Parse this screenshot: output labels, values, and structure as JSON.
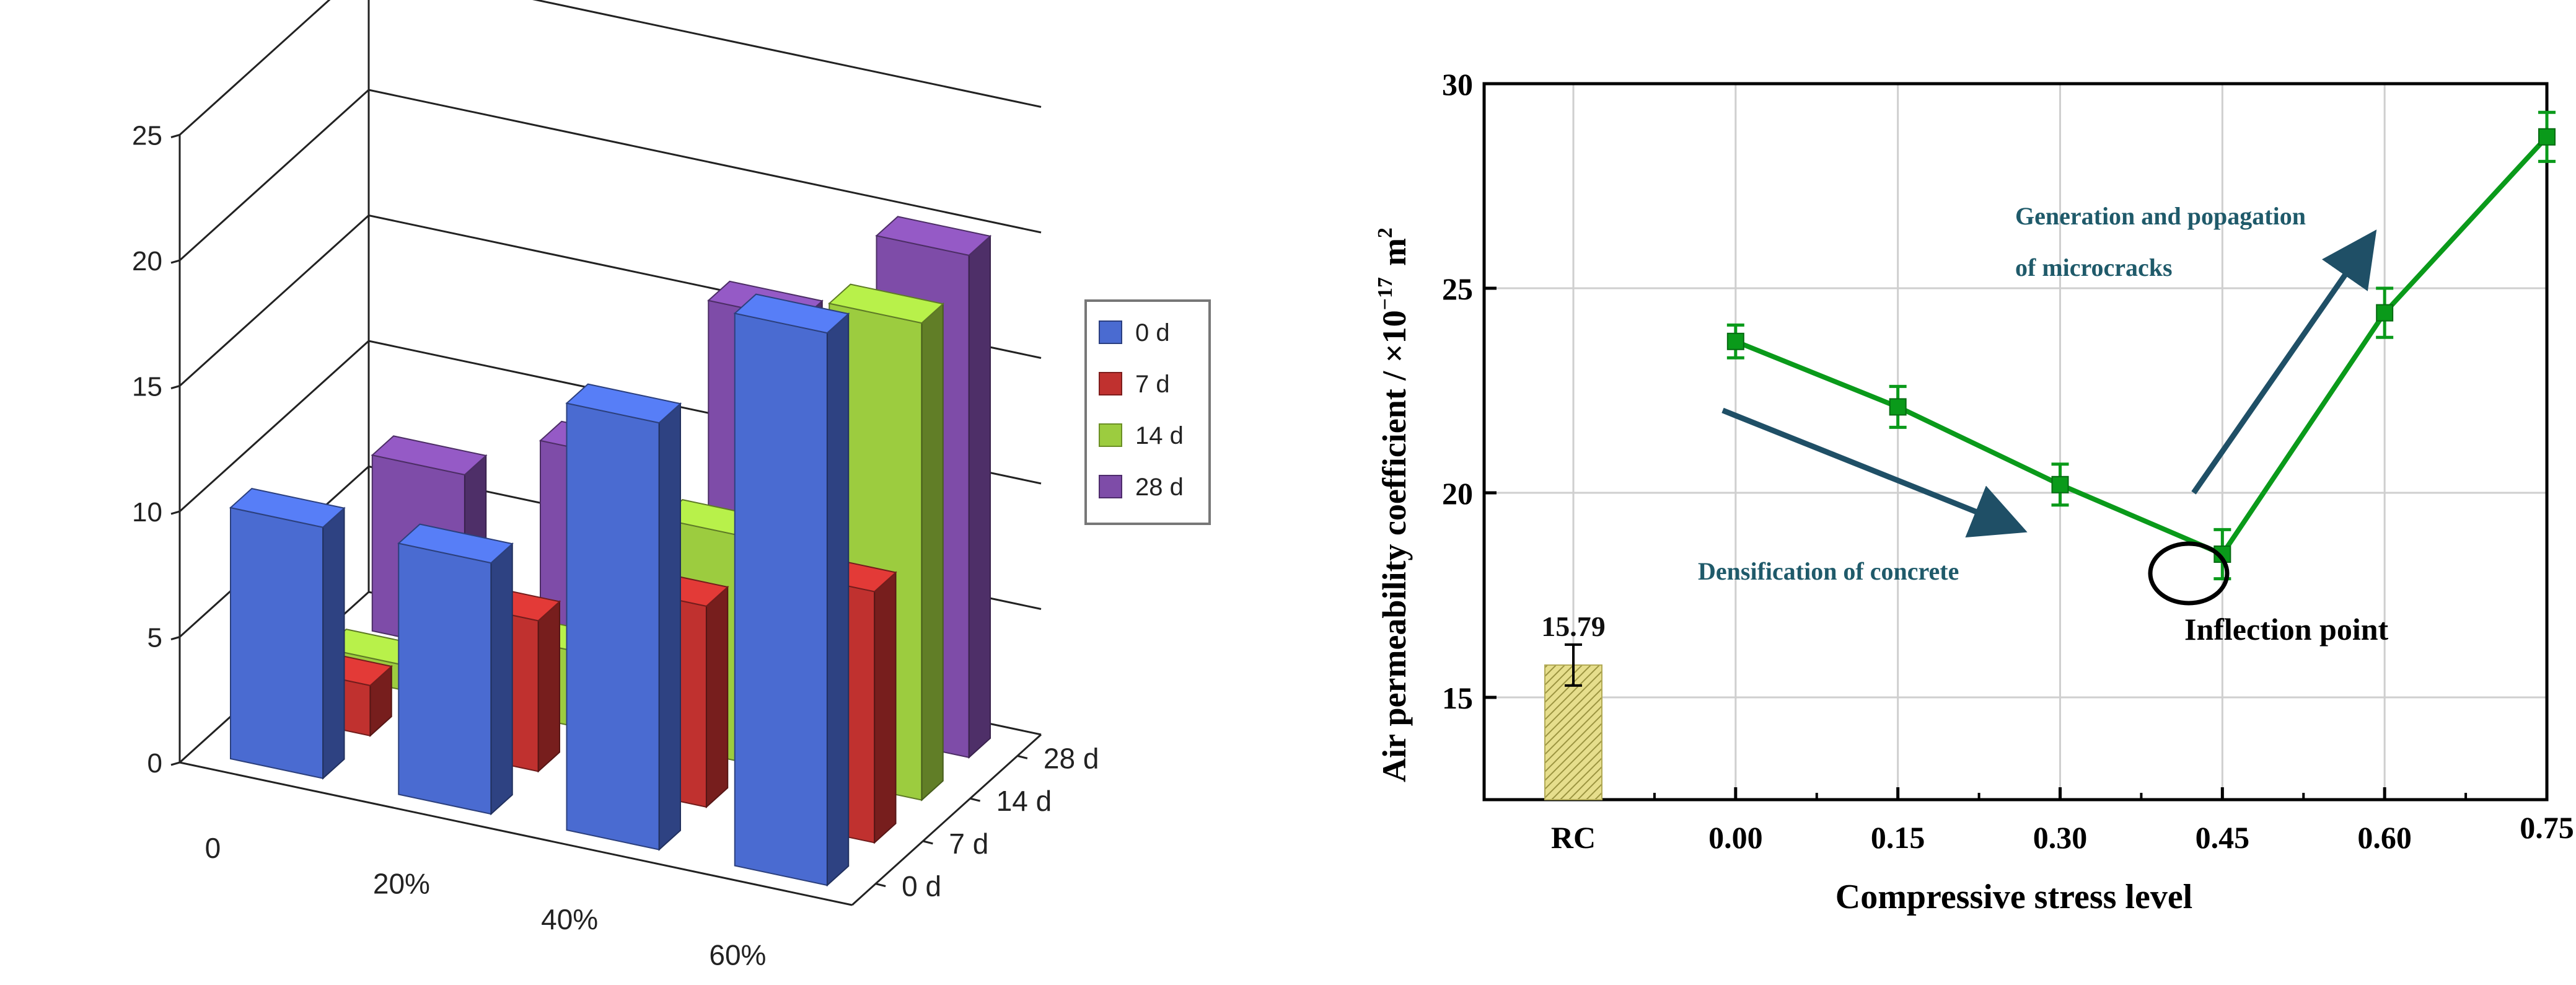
{
  "chart_data": [
    {
      "type": "bar-3d",
      "title": "",
      "yticks": [
        0,
        5,
        10,
        15,
        20,
        25
      ],
      "ylim": [
        0,
        25
      ],
      "categories": [
        "0",
        "20%",
        "40%",
        "60%"
      ],
      "depth_labels": [
        "0 d",
        "7 d",
        "14 d",
        "28 d"
      ],
      "legend": {
        "position": "right",
        "entries": [
          "0 d",
          "7 d",
          "14 d",
          "28 d"
        ]
      },
      "colors": {
        "0 d": "#4a6bd1",
        "7 d": "#c0312f",
        "14 d": "#9ccc3f",
        "28 d": "#7e4ca8"
      },
      "series": [
        {
          "name": "0 d",
          "values": [
            10,
            10,
            17,
            22
          ]
        },
        {
          "name": "7 d",
          "values": [
            2,
            6,
            8,
            10
          ]
        },
        {
          "name": "14 d",
          "values": [
            1,
            3,
            9,
            19
          ]
        },
        {
          "name": "28 d",
          "values": [
            7,
            9,
            16,
            20
          ]
        }
      ]
    },
    {
      "type": "line",
      "xlabel": "Compressive stress level",
      "ylabel": "Air permeability coefficient / ×10",
      "ylabel_exp": "−17",
      "ylabel_unit": "m",
      "ylabel_unit_exp": "2",
      "ylim": [
        12.5,
        30
      ],
      "yticks": [
        15,
        20,
        25,
        30
      ],
      "xticks": [
        "RC",
        "0.00",
        "0.15",
        "0.30",
        "0.45",
        "0.60",
        "0.75"
      ],
      "reference_bar": {
        "label": "RC",
        "value": 15.79,
        "value_label": "15.79",
        "error": 0.5
      },
      "series": [
        {
          "name": "Air permeability",
          "x": [
            0.0,
            0.15,
            0.3,
            0.45,
            0.6,
            0.75
          ],
          "values": [
            23.7,
            22.1,
            20.2,
            18.5,
            24.4,
            28.7
          ],
          "errors": [
            0.4,
            0.5,
            0.5,
            0.6,
            0.6,
            0.6
          ]
        }
      ],
      "annotations": {
        "densification": "Densification of concrete",
        "generation_line1": "Generation and popagation",
        "generation_line2": "of microcracks",
        "inflection": "Inflection point"
      },
      "colors": {
        "line": "#0a9a1a",
        "arrow": "#1f4f66",
        "annotation_text": "#1f5a6a",
        "bar": "#d8d070"
      }
    }
  ]
}
